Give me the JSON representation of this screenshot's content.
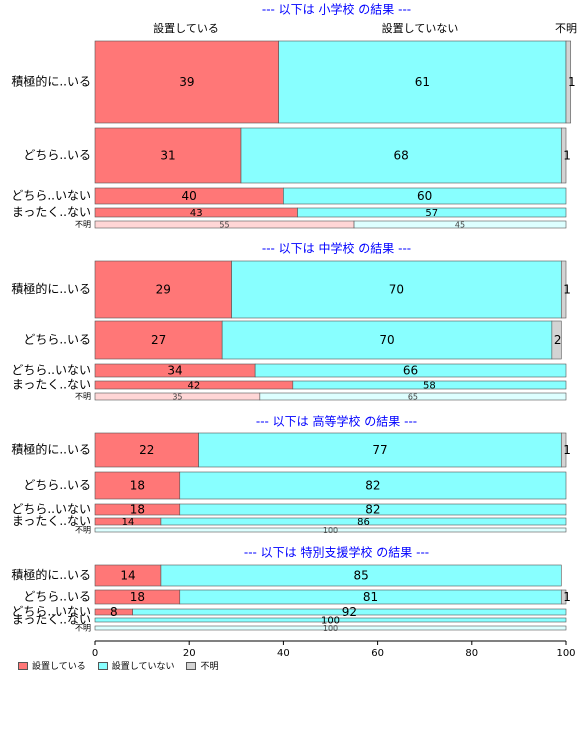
{
  "colors": {
    "set": "#ff7777",
    "notset": "#88ffff",
    "unknown": "#d3d3d3",
    "set_light": "#ffd6d6",
    "notset_light": "#ddffff",
    "title": "#0000ff"
  },
  "column_headers": {
    "set": "設置している",
    "notset": "設置していない",
    "unknown": "不明"
  },
  "legend": [
    {
      "label": "設置している",
      "color_key": "set"
    },
    {
      "label": "設置していない",
      "color_key": "notset"
    },
    {
      "label": "不明",
      "color_key": "unknown"
    }
  ],
  "chart_data": {
    "type": "bar",
    "orientation": "horizontal",
    "stacked": true,
    "xlim": [
      0,
      100
    ],
    "x_ticks": [
      0,
      20,
      40,
      60,
      80,
      100
    ],
    "series_names": [
      "設置している",
      "設置していない",
      "不明"
    ],
    "panels": [
      {
        "title": "--- 以下は 小学校 の結果 ---",
        "rows": [
          {
            "label": "積極的に..いる",
            "values": [
              39,
              61,
              1
            ]
          },
          {
            "label": "どちら..いる",
            "values": [
              31,
              68,
              1
            ]
          },
          {
            "label": "どちら..いない",
            "values": [
              40,
              60,
              0
            ]
          },
          {
            "label": "まったく..ない",
            "values": [
              43,
              57,
              0
            ]
          },
          {
            "label": "不明",
            "values": [
              55,
              45,
              0
            ]
          }
        ]
      },
      {
        "title": "--- 以下は 中学校 の結果 ---",
        "rows": [
          {
            "label": "積極的に..いる",
            "values": [
              29,
              70,
              1
            ]
          },
          {
            "label": "どちら..いる",
            "values": [
              27,
              70,
              2
            ]
          },
          {
            "label": "どちら..いない",
            "values": [
              34,
              66,
              0
            ]
          },
          {
            "label": "まったく..ない",
            "values": [
              42,
              58,
              0
            ]
          },
          {
            "label": "不明",
            "values": [
              35,
              65,
              0
            ]
          }
        ]
      },
      {
        "title": "--- 以下は 高等学校 の結果 ---",
        "rows": [
          {
            "label": "積極的に..いる",
            "values": [
              22,
              77,
              1
            ]
          },
          {
            "label": "どちら..いる",
            "values": [
              18,
              82,
              0
            ]
          },
          {
            "label": "どちら..いない",
            "values": [
              18,
              82,
              0
            ]
          },
          {
            "label": "まったく..ない",
            "values": [
              14,
              86,
              0
            ]
          },
          {
            "label": "不明",
            "values": [
              0,
              100,
              0
            ]
          }
        ]
      },
      {
        "title": "--- 以下は 特別支援学校 の結果 ---",
        "rows": [
          {
            "label": "積極的に..いる",
            "values": [
              14,
              85,
              0
            ]
          },
          {
            "label": "どちら..いる",
            "values": [
              18,
              81,
              1
            ]
          },
          {
            "label": "どちら..いない",
            "values": [
              8,
              92,
              0
            ]
          },
          {
            "label": "まったく..ない",
            "values": [
              0,
              100,
              0
            ]
          },
          {
            "label": "不明",
            "values": [
              0,
              100,
              0
            ]
          }
        ]
      }
    ]
  }
}
